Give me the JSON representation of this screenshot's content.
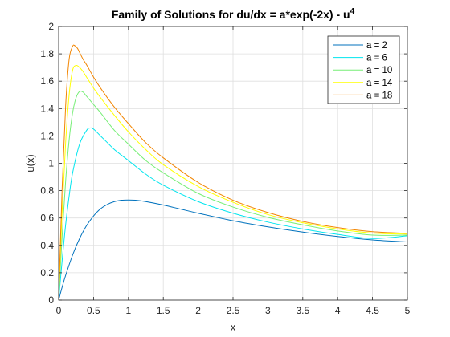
{
  "chart_data": {
    "type": "line",
    "title": "Family of Solutions for du/dx = a*exp(-2x) - u",
    "title_superscript": "4",
    "xlabel": "x",
    "ylabel": "u(x)",
    "xlim": [
      0,
      5
    ],
    "ylim": [
      0,
      2
    ],
    "xticks": [
      "0",
      "0.5",
      "1",
      "1.5",
      "2",
      "2.5",
      "3",
      "3.5",
      "4",
      "4.5",
      "5"
    ],
    "yticks": [
      "0",
      "0.2",
      "0.4",
      "0.6",
      "0.8",
      "1",
      "1.2",
      "1.4",
      "1.6",
      "1.8",
      "2"
    ],
    "grid": true,
    "legend_position": "top-right",
    "series": [
      {
        "name": "a = 2",
        "color": "#0072BD",
        "x": [
          0,
          0.05,
          0.1,
          0.2,
          0.3,
          0.4,
          0.5,
          0.6,
          0.7,
          0.8,
          0.9,
          1.0,
          1.1,
          1.25,
          1.5,
          1.75,
          2.0,
          2.5,
          3.0,
          3.5,
          4.0,
          4.5,
          5.0
        ],
        "y": [
          0,
          0.095,
          0.181,
          0.33,
          0.45,
          0.545,
          0.615,
          0.667,
          0.7,
          0.72,
          0.73,
          0.732,
          0.73,
          0.72,
          0.695,
          0.665,
          0.635,
          0.58,
          0.535,
          0.497,
          0.465,
          0.44,
          0.425
        ]
      },
      {
        "name": "a = 6",
        "color": "#00E5EE",
        "x": [
          0,
          0.05,
          0.1,
          0.15,
          0.2,
          0.3,
          0.4,
          0.45,
          0.5,
          0.6,
          0.7,
          0.8,
          1.0,
          1.25,
          1.5,
          2.0,
          2.5,
          3.0,
          3.5,
          4.0,
          4.5,
          5.0
        ],
        "y": [
          0,
          0.29,
          0.55,
          0.76,
          0.93,
          1.14,
          1.24,
          1.258,
          1.25,
          1.2,
          1.15,
          1.1,
          1.02,
          0.92,
          0.84,
          0.72,
          0.635,
          0.57,
          0.52,
          0.48,
          0.45,
          0.47
        ]
      },
      {
        "name": "a = 10",
        "color": "#77EE77",
        "x": [
          0,
          0.05,
          0.1,
          0.15,
          0.2,
          0.25,
          0.3,
          0.35,
          0.4,
          0.5,
          0.6,
          0.8,
          1.0,
          1.25,
          1.5,
          2.0,
          2.5,
          3.0,
          3.5,
          4.0,
          4.5,
          5.0
        ],
        "y": [
          0,
          0.47,
          0.87,
          1.17,
          1.37,
          1.48,
          1.525,
          1.52,
          1.49,
          1.43,
          1.37,
          1.24,
          1.14,
          1.02,
          0.93,
          0.78,
          0.68,
          0.605,
          0.55,
          0.505,
          0.475,
          0.475
        ]
      },
      {
        "name": "a = 14",
        "color": "#FFFF00",
        "x": [
          0,
          0.05,
          0.1,
          0.15,
          0.2,
          0.25,
          0.3,
          0.35,
          0.4,
          0.5,
          0.6,
          0.8,
          1.0,
          1.25,
          1.5,
          2.0,
          2.5,
          3.0,
          3.5,
          4.0,
          4.5,
          5.0
        ],
        "y": [
          0,
          0.65,
          1.15,
          1.5,
          1.68,
          1.715,
          1.7,
          1.67,
          1.63,
          1.55,
          1.48,
          1.35,
          1.23,
          1.1,
          0.99,
          0.83,
          0.715,
          0.625,
          0.565,
          0.52,
          0.49,
          0.482
        ]
      },
      {
        "name": "a = 18",
        "color": "#F28500",
        "x": [
          0,
          0.05,
          0.1,
          0.15,
          0.2,
          0.23,
          0.27,
          0.3,
          0.35,
          0.4,
          0.5,
          0.6,
          0.8,
          1.0,
          1.25,
          1.5,
          2.0,
          2.5,
          3.0,
          3.5,
          4.0,
          4.5,
          5.0
        ],
        "y": [
          0,
          0.82,
          1.42,
          1.76,
          1.855,
          1.86,
          1.84,
          1.81,
          1.76,
          1.72,
          1.63,
          1.55,
          1.41,
          1.29,
          1.15,
          1.04,
          0.86,
          0.73,
          0.64,
          0.575,
          0.53,
          0.5,
          0.488
        ]
      }
    ]
  }
}
